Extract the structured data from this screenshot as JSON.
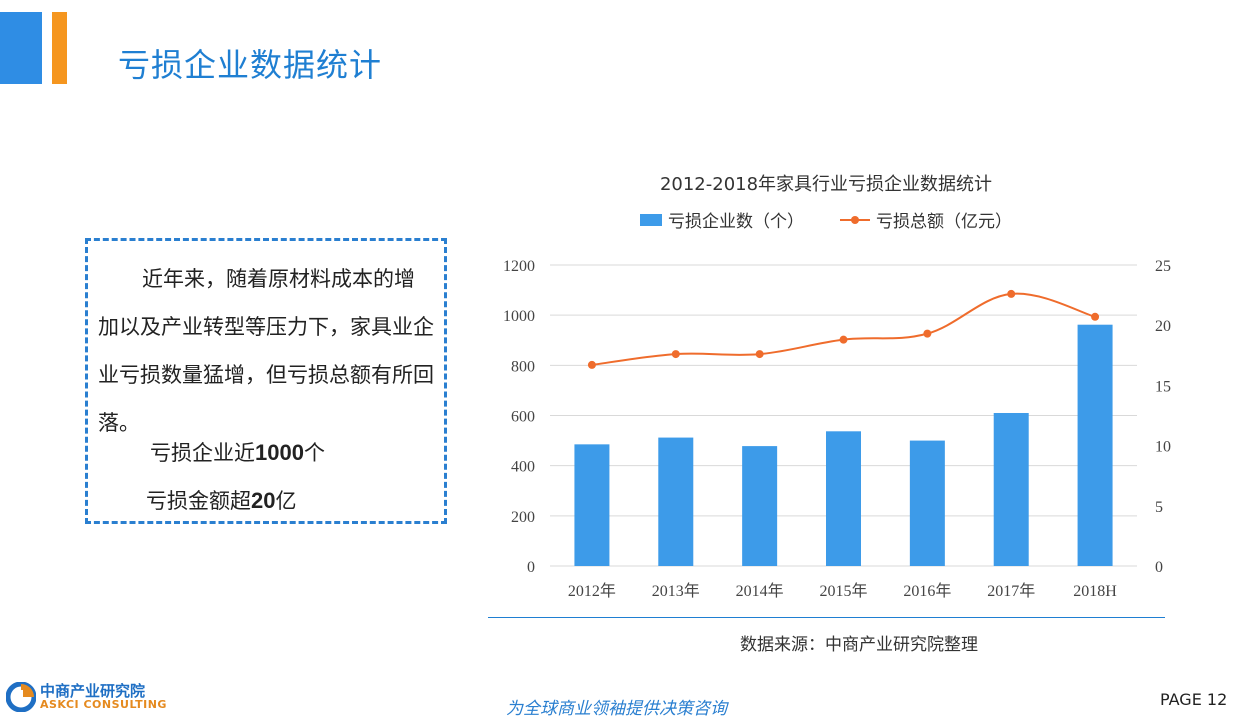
{
  "header": {
    "title": "亏损企业数据统计"
  },
  "textbox": {
    "paragraph": "近年来，随着原材料成本的增加以及产业转型等压力下，家具业企业亏损数量猛增，但亏损总额有所回落。",
    "stat1_prefix": "亏损企业近",
    "stat1_value": "1000",
    "stat1_suffix": "个",
    "stat2_prefix": "亏损金额超",
    "stat2_value": "20",
    "stat2_suffix": "亿"
  },
  "chart_data": {
    "type": "bar",
    "title": "2012-2018年家具行业亏损企业数据统计",
    "categories": [
      "2012年",
      "2013年",
      "2014年",
      "2015年",
      "2016年",
      "2017年",
      "2018H"
    ],
    "series": [
      {
        "name": "亏损企业数（个）",
        "type": "bar",
        "axis": "left",
        "values": [
          485,
          512,
          478,
          537,
          500,
          610,
          962
        ],
        "color": "#3d9be9"
      },
      {
        "name": "亏损总额（亿元）",
        "type": "line",
        "axis": "right",
        "values": [
          16.7,
          17.6,
          17.6,
          18.8,
          19.3,
          22.6,
          20.7
        ],
        "color": "#ef6c2c"
      }
    ],
    "y_left": {
      "ticks": [
        "0",
        "200",
        "400",
        "600",
        "800",
        "1000",
        "1200"
      ],
      "lim": [
        0,
        1200
      ]
    },
    "y_right": {
      "ticks": [
        "0",
        "5",
        "10",
        "15",
        "20",
        "25"
      ],
      "lim": [
        0,
        25
      ]
    },
    "grid": true,
    "legend": "top"
  },
  "source": "数据来源：中商产业研究院整理",
  "footer": {
    "logo_cn": "中商产业研究院",
    "logo_en": "ASKCI CONSULTING",
    "slogan": "为全球商业领袖提供决策咨询",
    "page": "PAGE  12"
  }
}
